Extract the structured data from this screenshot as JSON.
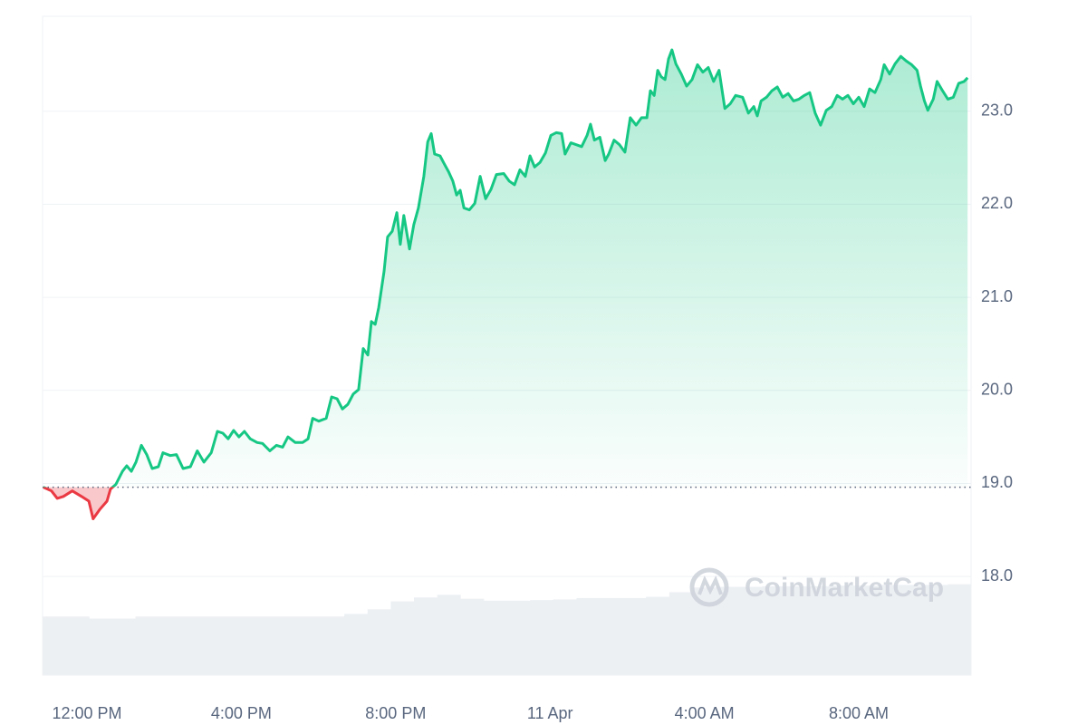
{
  "chart_data": {
    "type": "line",
    "watermark": "CoinMarketCap",
    "x": [
      10.87,
      11.08,
      11.23,
      11.39,
      11.62,
      11.86,
      12.05,
      12.16,
      12.33,
      12.52,
      12.61,
      12.75,
      12.92,
      13.03,
      13.15,
      13.27,
      13.41,
      13.55,
      13.69,
      13.85,
      13.97,
      14.16,
      14.32,
      14.49,
      14.68,
      14.86,
      15.03,
      15.22,
      15.38,
      15.52,
      15.66,
      15.8,
      15.94,
      16.08,
      16.23,
      16.41,
      16.55,
      16.74,
      16.91,
      17.07,
      17.21,
      17.4,
      17.59,
      17.73,
      17.85,
      18.01,
      18.2,
      18.34,
      18.48,
      18.62,
      18.76,
      18.9,
      19.04,
      19.16,
      19.28,
      19.37,
      19.47,
      19.56,
      19.7,
      19.79,
      19.91,
      20.03,
      20.12,
      20.21,
      20.36,
      20.47,
      20.59,
      20.73,
      20.83,
      20.92,
      21.01,
      21.15,
      21.25,
      21.37,
      21.48,
      21.58,
      21.67,
      21.77,
      21.91,
      22.05,
      22.19,
      22.33,
      22.47,
      22.61,
      22.8,
      22.94,
      23.08,
      23.22,
      23.36,
      23.48,
      23.6,
      23.74,
      23.88,
      24.02,
      24.16,
      24.3,
      24.39,
      24.54,
      24.68,
      24.82,
      24.96,
      25.05,
      25.15,
      25.29,
      25.43,
      25.52,
      25.66,
      25.8,
      25.94,
      26.08,
      26.23,
      26.37,
      26.51,
      26.6,
      26.7,
      26.79,
      26.88,
      26.98,
      27.07,
      27.16,
      27.26,
      27.4,
      27.54,
      27.68,
      27.82,
      27.96,
      28.1,
      28.24,
      28.38,
      28.53,
      28.67,
      28.81,
      28.99,
      29.14,
      29.28,
      29.37,
      29.47,
      29.61,
      29.75,
      29.89,
      30.03,
      30.17,
      30.31,
      30.45,
      30.59,
      30.73,
      30.87,
      31.01,
      31.16,
      31.3,
      31.44,
      31.58,
      31.72,
      31.86,
      32.0,
      32.14,
      32.28,
      32.42,
      32.57,
      32.66,
      32.8,
      32.94,
      33.09,
      33.23,
      33.37,
      33.51,
      33.6,
      33.7,
      33.79,
      33.93,
      34.03,
      34.17,
      34.31,
      34.45,
      34.59,
      34.73,
      34.82
    ],
    "values": [
      18.96,
      18.92,
      18.84,
      18.86,
      18.92,
      18.86,
      18.81,
      18.62,
      18.72,
      18.81,
      18.94,
      18.99,
      19.13,
      19.19,
      19.13,
      19.23,
      19.41,
      19.31,
      19.16,
      19.18,
      19.33,
      19.3,
      19.31,
      19.16,
      19.18,
      19.35,
      19.23,
      19.33,
      19.56,
      19.54,
      19.48,
      19.57,
      19.5,
      19.56,
      19.48,
      19.44,
      19.43,
      19.35,
      19.41,
      19.39,
      19.5,
      19.44,
      19.44,
      19.48,
      19.7,
      19.67,
      19.7,
      19.93,
      19.91,
      19.8,
      19.85,
      19.96,
      20.01,
      20.45,
      20.38,
      20.74,
      20.71,
      20.89,
      21.28,
      21.65,
      21.71,
      21.91,
      21.57,
      21.88,
      21.52,
      21.78,
      21.96,
      22.3,
      22.67,
      22.76,
      22.54,
      22.52,
      22.44,
      22.35,
      22.25,
      22.1,
      22.15,
      21.96,
      21.94,
      22.01,
      22.3,
      22.06,
      22.16,
      22.32,
      22.33,
      22.25,
      22.21,
      22.37,
      22.3,
      22.52,
      22.4,
      22.45,
      22.55,
      22.74,
      22.77,
      22.76,
      22.54,
      22.66,
      22.64,
      22.62,
      22.74,
      22.86,
      22.69,
      22.72,
      22.47,
      22.54,
      22.69,
      22.64,
      22.56,
      22.93,
      22.85,
      22.93,
      22.93,
      23.22,
      23.17,
      23.44,
      23.37,
      23.34,
      23.56,
      23.66,
      23.51,
      23.4,
      23.27,
      23.34,
      23.5,
      23.42,
      23.47,
      23.32,
      23.44,
      23.03,
      23.08,
      23.17,
      23.15,
      22.98,
      23.05,
      22.95,
      23.11,
      23.15,
      23.22,
      23.26,
      23.15,
      23.19,
      23.11,
      23.13,
      23.17,
      23.2,
      22.98,
      22.85,
      23.01,
      23.05,
      23.17,
      23.13,
      23.17,
      23.08,
      23.15,
      23.05,
      23.24,
      23.2,
      23.34,
      23.5,
      23.4,
      23.51,
      23.59,
      23.54,
      23.5,
      23.44,
      23.27,
      23.11,
      23.01,
      23.13,
      23.32,
      23.22,
      23.13,
      23.15,
      23.3,
      23.32,
      23.36
    ],
    "color": "#16c784",
    "negative_color": "#ea3943",
    "baseline": 18.96,
    "xlim": [
      10.85,
      34.91
    ],
    "xticks": [
      {
        "value": 12,
        "label": "12:00 PM"
      },
      {
        "value": 16,
        "label": "4:00 PM"
      },
      {
        "value": 20,
        "label": "8:00 PM"
      },
      {
        "value": 24,
        "label": "11 Apr"
      },
      {
        "value": 28,
        "label": "4:00 AM"
      },
      {
        "value": 32,
        "label": "8:00 AM"
      }
    ],
    "ylim": [
      16.94,
      24.02
    ],
    "yticks": [
      {
        "value": 18,
        "label": "18.0"
      },
      {
        "value": 19,
        "label": "19.0"
      },
      {
        "value": 20,
        "label": "20.0"
      },
      {
        "value": 21,
        "label": "21.0"
      },
      {
        "value": 22,
        "label": "22.0"
      },
      {
        "value": 23,
        "label": "23.0"
      }
    ],
    "grid": true,
    "volume": {
      "axis": "y2",
      "color": "#edf0f3",
      "values": [
        8.9,
        8.9,
        8.6,
        8.6,
        8.9,
        8.9,
        8.9,
        8.9,
        8.9,
        8.9,
        8.9,
        8.9,
        8.9,
        9.3,
        10.0,
        11.2,
        11.8,
        12.2,
        11.6,
        11.3,
        11.3,
        11.4,
        11.5,
        11.7,
        11.7,
        11.7,
        11.9,
        12.6,
        13.3,
        13.4,
        13.4,
        13.5,
        13.5,
        13.5,
        13.6,
        13.6,
        13.7,
        13.7,
        13.7,
        13.8
      ]
    },
    "y2lim": [
      0,
      100
    ]
  }
}
